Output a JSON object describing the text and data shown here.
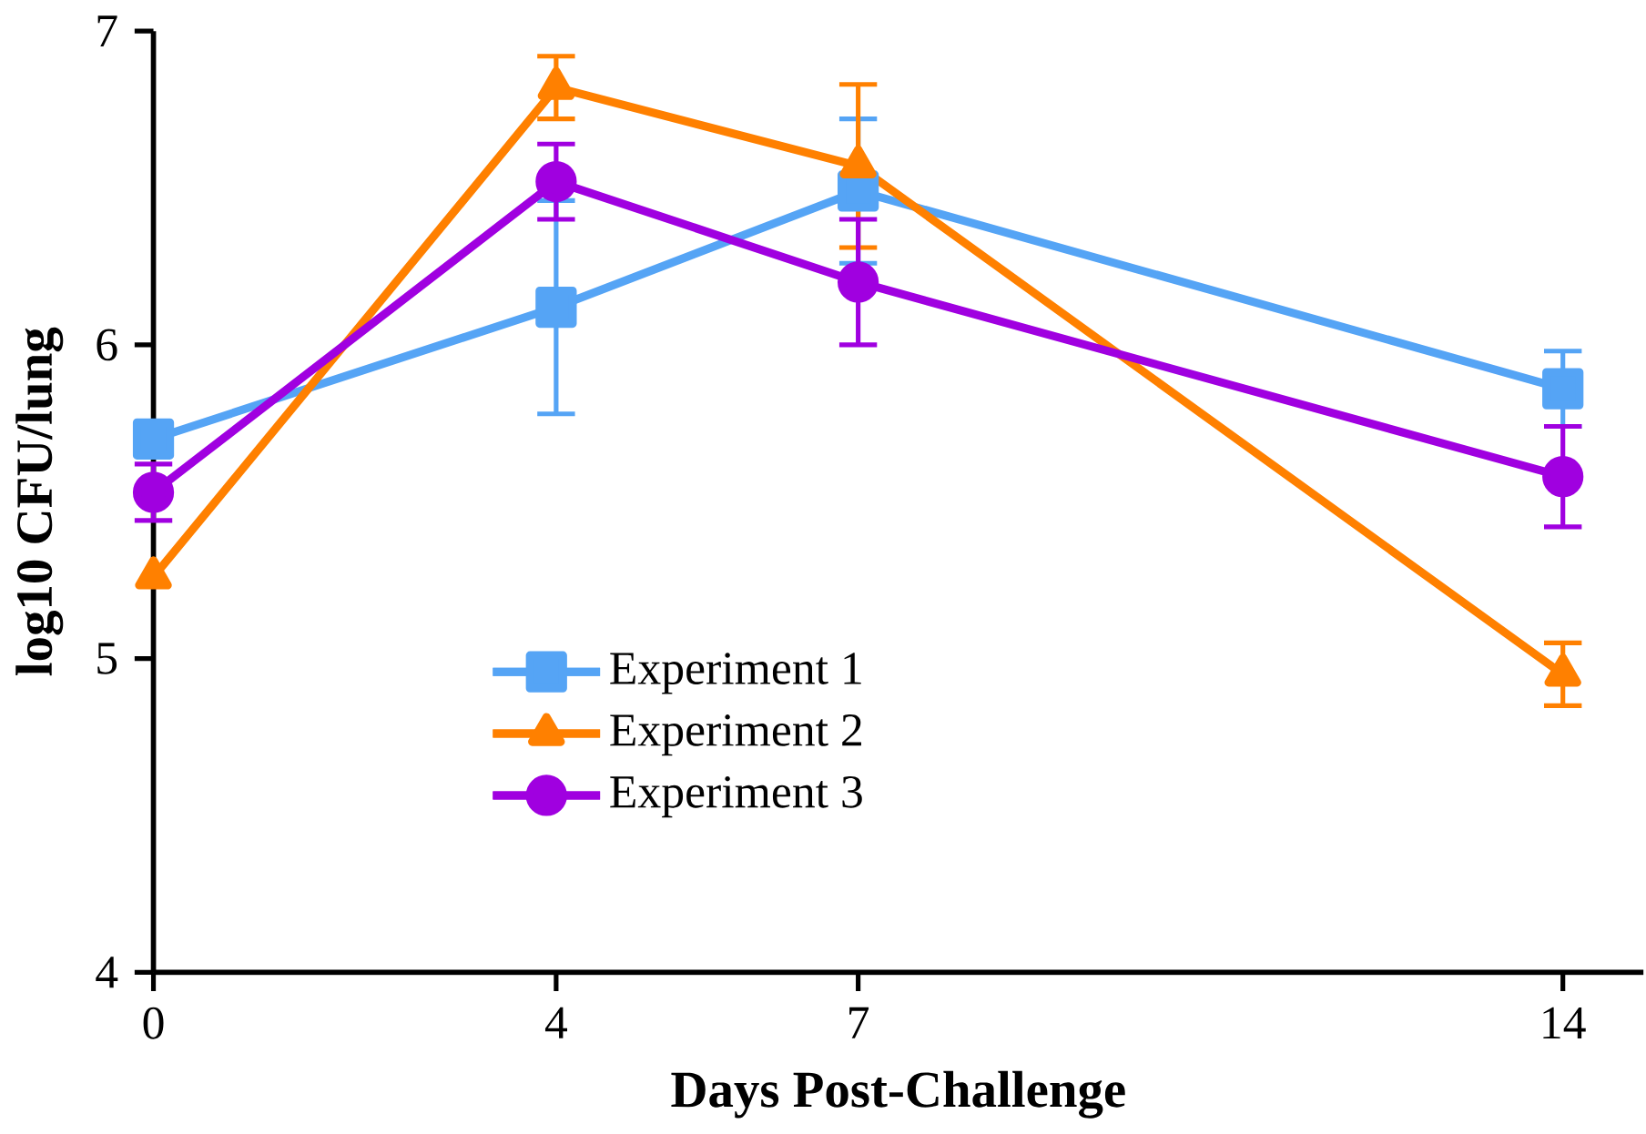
{
  "chart_data": {
    "type": "line",
    "xlabel": "Days Post-Challenge",
    "ylabel": "log10 CFU/lung",
    "x": [
      0,
      4,
      7,
      14
    ],
    "xlim": [
      0,
      14.8
    ],
    "xticks": [
      0,
      4,
      7,
      14
    ],
    "ylim": [
      4,
      7
    ],
    "yticks": [
      4,
      5,
      6,
      7
    ],
    "legend": "center",
    "grid": false,
    "series": [
      {
        "name": "Experiment 1",
        "color": "#55a4f5",
        "marker": "square",
        "values": [
          5.7,
          6.12,
          6.49,
          5.86
        ],
        "errors": [
          null,
          0.34,
          0.23,
          0.12
        ]
      },
      {
        "name": "Experiment 2",
        "color": "#ff8000",
        "marker": "triangle",
        "values": [
          5.26,
          6.82,
          6.57,
          4.95
        ],
        "errors": [
          null,
          0.1,
          0.26,
          0.1
        ]
      },
      {
        "name": "Experiment 3",
        "color": "#a000e0",
        "marker": "circle",
        "values": [
          5.53,
          6.52,
          6.2,
          5.58
        ],
        "errors": [
          0.09,
          0.12,
          0.2,
          0.16
        ]
      }
    ]
  }
}
